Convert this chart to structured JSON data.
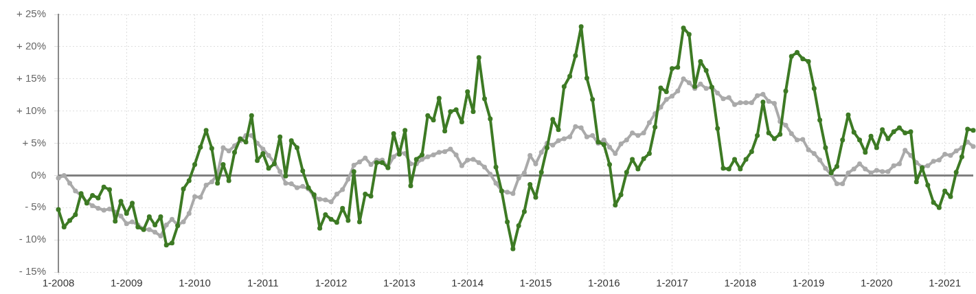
{
  "chart_data": {
    "type": "line",
    "x": [
      "2008-01",
      "2008-02",
      "2008-03",
      "2008-04",
      "2008-05",
      "2008-06",
      "2008-07",
      "2008-08",
      "2008-09",
      "2008-10",
      "2008-11",
      "2008-12",
      "2009-01",
      "2009-02",
      "2009-03",
      "2009-04",
      "2009-05",
      "2009-06",
      "2009-07",
      "2009-08",
      "2009-09",
      "2009-10",
      "2009-11",
      "2009-12",
      "2010-01",
      "2010-02",
      "2010-03",
      "2010-04",
      "2010-05",
      "2010-06",
      "2010-07",
      "2010-08",
      "2010-09",
      "2010-10",
      "2010-11",
      "2010-12",
      "2011-01",
      "2011-02",
      "2011-03",
      "2011-04",
      "2011-05",
      "2011-06",
      "2011-07",
      "2011-08",
      "2011-09",
      "2011-10",
      "2011-11",
      "2011-12",
      "2012-01",
      "2012-02",
      "2012-03",
      "2012-04",
      "2012-05",
      "2012-06",
      "2012-07",
      "2012-08",
      "2012-09",
      "2012-10",
      "2012-11",
      "2012-12",
      "2013-01",
      "2013-02",
      "2013-03",
      "2013-04",
      "2013-05",
      "2013-06",
      "2013-07",
      "2013-08",
      "2013-09",
      "2013-10",
      "2013-11",
      "2013-12",
      "2014-01",
      "2014-02",
      "2014-03",
      "2014-04",
      "2014-05",
      "2014-06",
      "2014-07",
      "2014-08",
      "2014-09",
      "2014-10",
      "2014-11",
      "2014-12",
      "2015-01",
      "2015-02",
      "2015-03",
      "2015-04",
      "2015-05",
      "2015-06",
      "2015-07",
      "2015-08",
      "2015-09",
      "2015-10",
      "2015-11",
      "2015-12",
      "2016-01",
      "2016-02",
      "2016-03",
      "2016-04",
      "2016-05",
      "2016-06",
      "2016-07",
      "2016-08",
      "2016-09",
      "2016-10",
      "2016-11",
      "2016-12",
      "2017-01",
      "2017-02",
      "2017-03",
      "2017-04",
      "2017-05",
      "2017-06",
      "2017-07",
      "2017-08",
      "2017-09",
      "2017-10",
      "2017-11",
      "2017-12",
      "2018-01",
      "2018-02",
      "2018-03",
      "2018-04",
      "2018-05",
      "2018-06",
      "2018-07",
      "2018-08",
      "2018-09",
      "2018-10",
      "2018-11",
      "2018-12",
      "2019-01",
      "2019-02",
      "2019-03",
      "2019-04",
      "2019-05",
      "2019-06",
      "2019-07",
      "2019-08",
      "2019-09",
      "2019-10",
      "2019-11",
      "2019-12",
      "2020-01",
      "2020-02",
      "2020-03",
      "2020-04",
      "2020-05",
      "2020-06",
      "2020-07",
      "2020-08",
      "2020-09",
      "2020-10",
      "2020-11",
      "2020-12",
      "2021-01",
      "2021-02",
      "2021-03",
      "2021-04",
      "2021-05",
      "2021-06"
    ],
    "series": [
      {
        "color": "#aaaaaa",
        "values": [
          -0.4,
          0,
          -1.2,
          -2.4,
          -3.1,
          -4.1,
          -4.7,
          -5.1,
          -5.4,
          -5.2,
          -5.7,
          -6.3,
          -7.5,
          -7.2,
          -7.7,
          -8.3,
          -8.4,
          -8.8,
          -9.4,
          -7.7,
          -6.8,
          -7.7,
          -7.2,
          -5.9,
          -3.3,
          -3.4,
          -1.5,
          -1,
          0.2,
          4.3,
          3.8,
          4.6,
          5.4,
          6.2,
          6.2,
          5,
          4.1,
          3.1,
          2,
          0.6,
          -1.2,
          -1.3,
          -1.9,
          -1.7,
          -2.1,
          -3.3,
          -3.7,
          -3.8,
          -4.1,
          -2.9,
          -2.2,
          -0.6,
          1.6,
          2.1,
          2.7,
          1.7,
          2.4,
          2.4,
          1.3,
          2.9,
          3.6,
          3.4,
          1.8,
          1.8,
          2.5,
          2.9,
          3.2,
          3.6,
          3.7,
          4.1,
          3.2,
          1.5,
          2.4,
          2.5,
          2,
          1.3,
          0.2,
          -1.2,
          -2.4,
          -2.6,
          -2.8,
          -0.4,
          0.4,
          3.1,
          1.8,
          3.6,
          5,
          4.7,
          5.4,
          5.7,
          6,
          7.6,
          7.4,
          6,
          6.2,
          5,
          5.5,
          4.4,
          3.4,
          4.9,
          5.5,
          6.6,
          6.2,
          6.6,
          8.2,
          9.6,
          10.6,
          11.8,
          12.3,
          13.1,
          15,
          14.4,
          13.5,
          14.2,
          13.5,
          13.7,
          12.8,
          11.9,
          12.1,
          11,
          11.3,
          11.3,
          11.3,
          12.4,
          12.6,
          11.5,
          11.2,
          8.4,
          7.8,
          6.5,
          5.5,
          5.6,
          4,
          3.4,
          2.4,
          1.1,
          0.1,
          -1.3,
          -1.3,
          0.4,
          1,
          1.8,
          1,
          0.4,
          0.8,
          0.6,
          0.6,
          1.5,
          1.8,
          3.9,
          3.1,
          2,
          1.3,
          1.5,
          2.2,
          2.4,
          3.3,
          3.1,
          3.8,
          4.3,
          5.2,
          4.5
        ]
      },
      {
        "color": "#3d7a24",
        "values": [
          -5.3,
          -8,
          -7,
          -6.1,
          -2.8,
          -4.3,
          -3.1,
          -3.5,
          -1.8,
          -2.2,
          -7.1,
          -4,
          -5.9,
          -4.3,
          -8,
          -8.4,
          -6.4,
          -7.7,
          -6.4,
          -10.8,
          -10.5,
          -7.8,
          -2.1,
          -0.8,
          1.7,
          4.4,
          7,
          4.2,
          -1.2,
          1.7,
          -0.8,
          3.6,
          5.7,
          5.2,
          9.3,
          2.3,
          3.4,
          1.1,
          1.8,
          6,
          -0.1,
          5.4,
          4.3,
          0.7,
          -1.9,
          -3,
          -8.2,
          -6.1,
          -6.8,
          -7.3,
          -5.1,
          -7,
          0.6,
          -7.2,
          -2.9,
          -3.2,
          2,
          2,
          1.2,
          6.5,
          3.3,
          7,
          -1.6,
          2.5,
          3.2,
          9.3,
          8.6,
          12,
          6.9,
          9.9,
          10.2,
          8.3,
          13,
          9.9,
          18.3,
          11.9,
          8.8,
          1.3,
          -2.4,
          -7.2,
          -11.4,
          -7.8,
          -5.6,
          -1.4,
          -3.4,
          0.5,
          4.3,
          8.7,
          7.1,
          13.8,
          15.4,
          18.6,
          23.1,
          15.1,
          11.8,
          5.2,
          4.8,
          1.7,
          -4.6,
          -3,
          0.5,
          2.5,
          1,
          2.6,
          3.4,
          7.5,
          13.6,
          13,
          16.6,
          16.8,
          22.9,
          21.9,
          13.8,
          17.7,
          16.3,
          13.7,
          7.3,
          1.1,
          1,
          2.5,
          1,
          2.5,
          3.7,
          6.2,
          11.4,
          6.6,
          5.7,
          6.4,
          13.1,
          18.5,
          19.1,
          18.1,
          17.7,
          13.5,
          8.6,
          4.3,
          0.4,
          1.4,
          5.5,
          9.4,
          6.7,
          5.5,
          3.6,
          6.1,
          4.3,
          7.1,
          5.7,
          6.8,
          7.4,
          6.6,
          6.8,
          -1,
          1.2,
          -1.5,
          -4.2,
          -5,
          -2.4,
          -3.3,
          0.5,
          2.9,
          7.2,
          7
        ]
      }
    ],
    "xlim": [
      "2008-01",
      "2021-06"
    ],
    "xticks": [
      {
        "value": "2008-01",
        "label": "1-2008"
      },
      {
        "value": "2009-01",
        "label": "1-2009"
      },
      {
        "value": "2010-01",
        "label": "1-2010"
      },
      {
        "value": "2011-01",
        "label": "1-2011"
      },
      {
        "value": "2012-01",
        "label": "1-2012"
      },
      {
        "value": "2013-01",
        "label": "1-2013"
      },
      {
        "value": "2014-01",
        "label": "1-2014"
      },
      {
        "value": "2015-01",
        "label": "1-2015"
      },
      {
        "value": "2016-01",
        "label": "1-2016"
      },
      {
        "value": "2017-01",
        "label": "1-2017"
      },
      {
        "value": "2018-01",
        "label": "1-2018"
      },
      {
        "value": "2019-01",
        "label": "1-2019"
      },
      {
        "value": "2020-01",
        "label": "1-2020"
      },
      {
        "value": "2021-01",
        "label": "1-2021"
      }
    ],
    "ylim": [
      -15,
      25
    ],
    "yticks": [
      {
        "value": -15,
        "label": "- 15%"
      },
      {
        "value": -10,
        "label": "- 10%"
      },
      {
        "value": -5,
        "label": "- 5%"
      },
      {
        "value": 0,
        "label": "0%"
      },
      {
        "value": 5,
        "label": "+ 5%"
      },
      {
        "value": 10,
        "label": "+ 10%"
      },
      {
        "value": 15,
        "label": "+ 15%"
      },
      {
        "value": 20,
        "label": "+ 20%"
      },
      {
        "value": 25,
        "label": "+ 25%"
      }
    ],
    "ref_lines": [
      {
        "axis": "y",
        "value": 0,
        "color": "#808080"
      }
    ],
    "grid": true,
    "legend": false,
    "marker": "circle",
    "line_style": "solid"
  }
}
